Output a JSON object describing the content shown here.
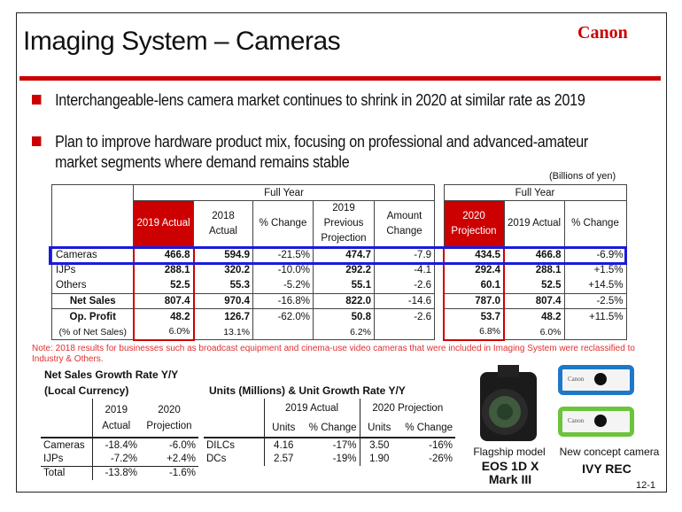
{
  "title": "Imaging System – Cameras",
  "logo": "Canon",
  "bullets": [
    "Interchangeable-lens camera market continues to shrink in 2020 at similar rate as 2019",
    "Plan to improve hardware product mix, focusing on professional and advanced-amateur market segments where demand remains stable"
  ],
  "unit": "(Billions of yen)",
  "main_table": {
    "group_left": "Full Year",
    "group_right": "Full Year",
    "columns": [
      "2019 Actual",
      "2018 Actual",
      "% Change",
      "2019 Previous Projection",
      "Amount Change",
      "2020 Projection",
      "2019 Actual",
      "% Change"
    ],
    "rows": [
      {
        "label": "Cameras",
        "values": [
          "466.8",
          "594.9",
          "-21.5%",
          "474.7",
          "-7.9",
          "434.5",
          "466.8",
          "-6.9%"
        ]
      },
      {
        "label": "IJPs",
        "values": [
          "288.1",
          "320.2",
          "-10.0%",
          "292.2",
          "-4.1",
          "292.4",
          "288.1",
          "+1.5%"
        ]
      },
      {
        "label": "Others",
        "values": [
          "52.5",
          "55.3",
          "-5.2%",
          "55.1",
          "-2.6",
          "60.1",
          "52.5",
          "+14.5%"
        ]
      },
      {
        "label": "Net Sales",
        "values": [
          "807.4",
          "970.4",
          "-16.8%",
          "822.0",
          "-14.6",
          "787.0",
          "807.4",
          "-2.5%"
        ]
      },
      {
        "label": "Op. Profit",
        "values": [
          "48.2",
          "126.7",
          "-62.0%",
          "50.8",
          "-2.6",
          "53.7",
          "48.2",
          "+11.5%"
        ]
      },
      {
        "label": "(% of Net Sales)",
        "values": [
          "6.0%",
          "13.1%",
          "",
          "6.2%",
          "",
          "6.8%",
          "6.0%",
          ""
        ]
      }
    ]
  },
  "note": "Note: 2018 results for businesses such as broadcast equipment and cinema-use video cameras that were included in Imaging System were reclassified to Industry & Others.",
  "growth": {
    "title1": "Net Sales Growth Rate Y/Y",
    "title2": "(Local Currency)",
    "columns": [
      "2019 Actual",
      "2020 Projection"
    ],
    "rows": [
      {
        "label": "Cameras",
        "values": [
          "-18.4%",
          "-6.0%"
        ]
      },
      {
        "label": "IJPs",
        "values": [
          "-7.2%",
          "+2.4%"
        ]
      },
      {
        "label": "Total",
        "values": [
          "-13.8%",
          "-1.6%"
        ]
      }
    ]
  },
  "units": {
    "title": "Units (Millions) & Unit Growth Rate Y/Y",
    "groups": [
      "2019 Actual",
      "2020 Projection"
    ],
    "columns": [
      "Units",
      "% Change",
      "Units",
      "% Change"
    ],
    "rows": [
      {
        "label": "DILCs",
        "values": [
          "4.16",
          "-17%",
          "3.50",
          "-16%"
        ]
      },
      {
        "label": "DCs",
        "values": [
          "2.57",
          "-19%",
          "1.90",
          "-26%"
        ]
      }
    ]
  },
  "products": [
    {
      "caption": "Flagship model",
      "name1": "EOS 1D X",
      "name2": "Mark III"
    },
    {
      "caption": "New concept camera",
      "name1": "IVY REC",
      "device_brand": "Canon"
    }
  ],
  "colors": {
    "accent": "#cc0000",
    "highlight": "#1a1adb",
    "ivy_blue": "#1e78c8",
    "ivy_green": "#6cc43c"
  },
  "page_number": "12-1"
}
